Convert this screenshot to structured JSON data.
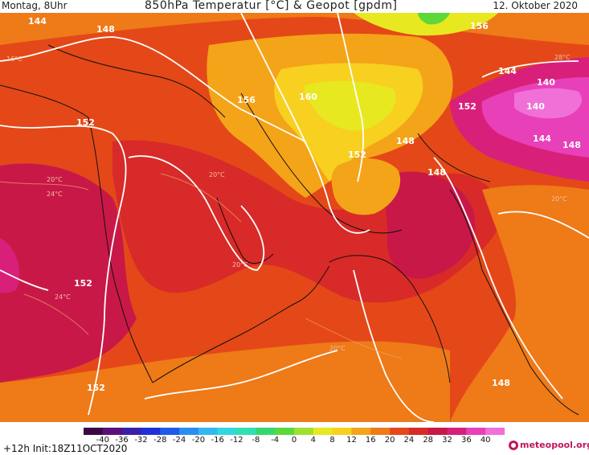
{
  "header": {
    "valid_time": "Montag, 8Uhr",
    "title": "850hPa Temperatur [°C] & Geopot [gpdm]",
    "date": "12. Oktober 2020"
  },
  "footer": {
    "init_text": "+12h  Init:18Z11OCT2020",
    "brand": "meteopool.org"
  },
  "legend": {
    "ticks": [
      "-40",
      "-36",
      "-32",
      "-28",
      "-24",
      "-20",
      "-16",
      "-12",
      "-8",
      "-4",
      "0",
      "4",
      "8",
      "12",
      "16",
      "20",
      "24",
      "28",
      "32",
      "36",
      "40"
    ],
    "colors": [
      "#3b0a45",
      "#5b0f7a",
      "#3a1fa8",
      "#2030d8",
      "#1f5be8",
      "#2a8ef0",
      "#33b8f0",
      "#30d8e0",
      "#2fe0b0",
      "#35d870",
      "#5cd838",
      "#a0e030",
      "#e8e820",
      "#f8d020",
      "#f4a418",
      "#ee7a18",
      "#e44818",
      "#d82a28",
      "#c81848",
      "#d8207a",
      "#e840b8",
      "#f070d8"
    ]
  },
  "map_labels": {
    "geopot": [
      "148",
      "152",
      "156",
      "160",
      "152",
      "148",
      "148",
      "144",
      "140",
      "140",
      "144",
      "148",
      "152",
      "152",
      "148",
      "152",
      "156",
      "144",
      "148"
    ],
    "temperature": [
      "20°C",
      "24°C",
      "16°C",
      "20°C",
      "20°C",
      "24°C",
      "20°C",
      "28°C",
      "20°C"
    ]
  }
}
